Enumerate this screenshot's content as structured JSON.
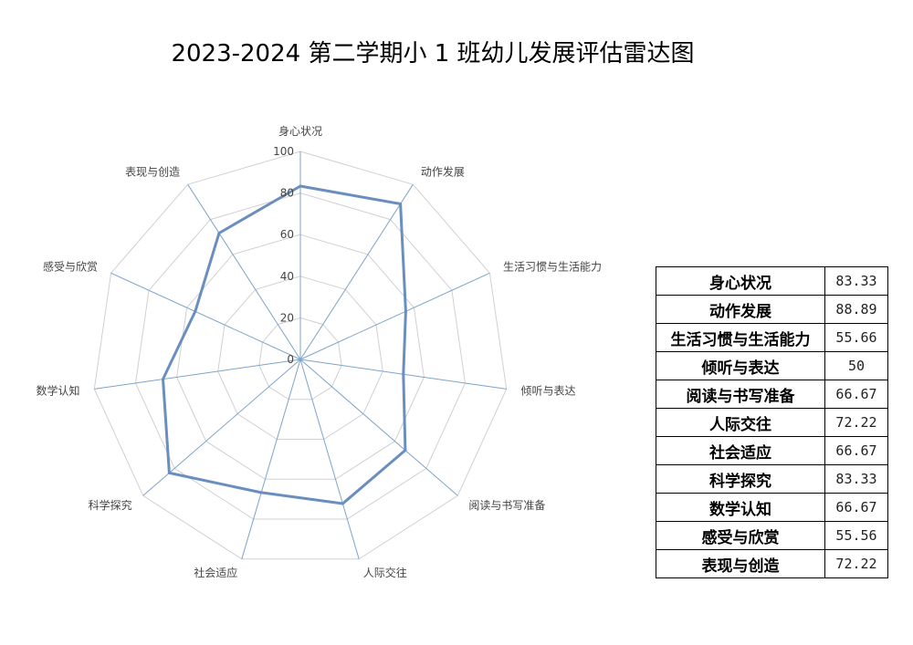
{
  "chart_data": {
    "type": "radar",
    "title": "2023-2024 第二学期小 1 班幼儿发展评估雷达图",
    "categories": [
      "身心状况",
      "动作发展",
      "生活习惯与生活能力",
      "倾听与表达",
      "阅读与书写准备",
      "人际交往",
      "社会适应",
      "科学探究",
      "数学认知",
      "感受与欣赏",
      "表现与创造"
    ],
    "values": [
      83.33,
      88.89,
      55.66,
      50,
      66.67,
      72.22,
      66.67,
      83.33,
      66.67,
      55.56,
      72.22
    ],
    "value_labels": [
      "83.33",
      "88.89",
      "55.66",
      "50",
      "66.67",
      "72.22",
      "66.67",
      "83.33",
      "66.67",
      "55.56",
      "72.22"
    ],
    "axis_ticks": [
      "0",
      "20",
      "40",
      "60",
      "80",
      "100"
    ],
    "rlim": [
      0,
      100
    ],
    "line_color": "#6a8fbf",
    "grid_color": "#d0d0d0",
    "spoke_color": "#7ea3c9",
    "grid": true
  }
}
